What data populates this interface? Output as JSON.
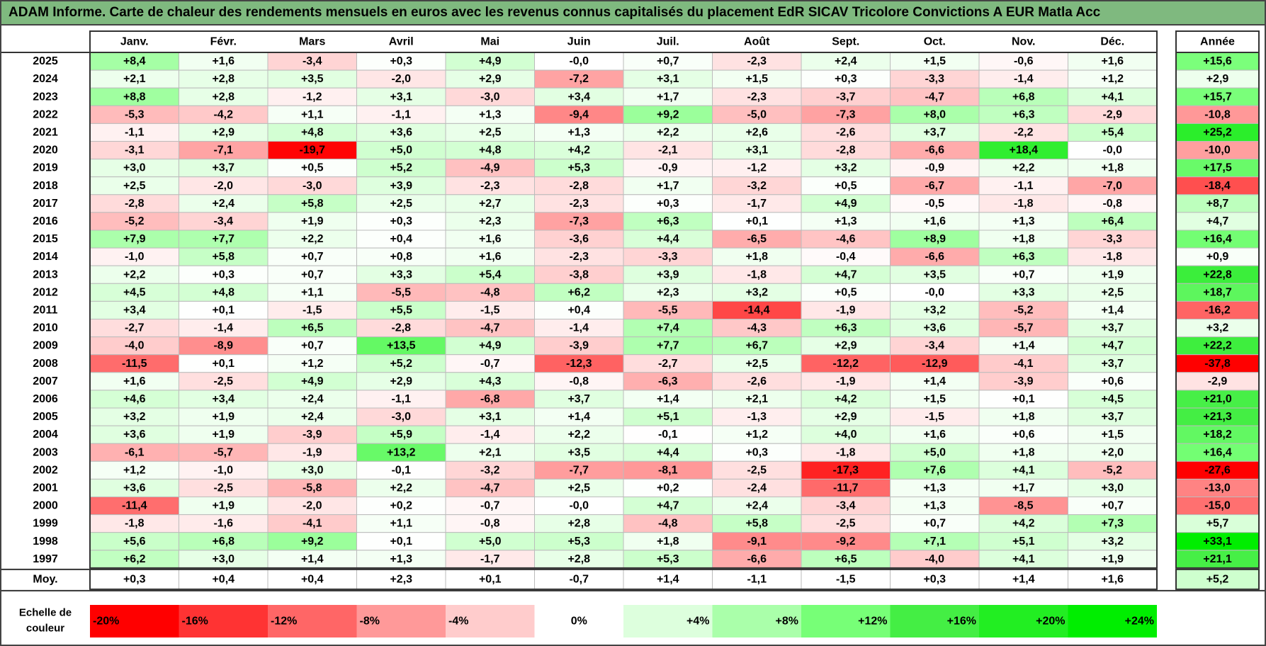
{
  "title": "ADAM Informe. Carte de chaleur des rendements mensuels en euros avec les revenus connus capitalisés du placement EdR SICAV Tricolore Convictions A EUR Matla Acc",
  "chart_data": {
    "type": "heatmap",
    "months": [
      "Janv.",
      "Févr.",
      "Mars",
      "Avril",
      "Mai",
      "Juin",
      "Juil.",
      "Août",
      "Sept.",
      "Oct.",
      "Nov.",
      "Déc."
    ],
    "year_header": "Année",
    "rows": [
      {
        "year": "2025",
        "months": [
          "+8,4",
          "+1,6",
          "-3,4",
          "+0,3",
          "+4,9",
          "-0,0",
          "+0,7",
          "-2,3",
          "+2,4",
          "+1,5",
          "-0,6",
          "+1,6"
        ],
        "annual": "+15,6"
      },
      {
        "year": "2024",
        "months": [
          "+2,1",
          "+2,8",
          "+3,5",
          "-2,0",
          "+2,9",
          "-7,2",
          "+3,1",
          "+1,5",
          "+0,3",
          "-3,3",
          "-1,4",
          "+1,2"
        ],
        "annual": "+2,9"
      },
      {
        "year": "2023",
        "months": [
          "+8,8",
          "+2,8",
          "-1,2",
          "+3,1",
          "-3,0",
          "+3,4",
          "+1,7",
          "-2,3",
          "-3,7",
          "-4,7",
          "+6,8",
          "+4,1"
        ],
        "annual": "+15,7"
      },
      {
        "year": "2022",
        "months": [
          "-5,3",
          "-4,2",
          "+1,1",
          "-1,1",
          "+1,3",
          "-9,4",
          "+9,2",
          "-5,0",
          "-7,3",
          "+8,0",
          "+6,3",
          "-2,9"
        ],
        "annual": "-10,8"
      },
      {
        "year": "2021",
        "months": [
          "-1,1",
          "+2,9",
          "+4,8",
          "+3,6",
          "+2,5",
          "+1,3",
          "+2,2",
          "+2,6",
          "-2,6",
          "+3,7",
          "-2,2",
          "+5,4"
        ],
        "annual": "+25,2"
      },
      {
        "year": "2020",
        "months": [
          "-3,1",
          "-7,1",
          "-19,7",
          "+5,0",
          "+4,8",
          "+4,2",
          "-2,1",
          "+3,1",
          "-2,8",
          "-6,6",
          "+18,4",
          "-0,0"
        ],
        "annual": "-10,0"
      },
      {
        "year": "2019",
        "months": [
          "+3,0",
          "+3,7",
          "+0,5",
          "+5,2",
          "-4,9",
          "+5,3",
          "-0,9",
          "-1,2",
          "+3,2",
          "-0,9",
          "+2,2",
          "+1,8"
        ],
        "annual": "+17,5"
      },
      {
        "year": "2018",
        "months": [
          "+2,5",
          "-2,0",
          "-3,0",
          "+3,9",
          "-2,3",
          "-2,8",
          "+1,7",
          "-3,2",
          "+0,5",
          "-6,7",
          "-1,1",
          "-7,0"
        ],
        "annual": "-18,4"
      },
      {
        "year": "2017",
        "months": [
          "-2,8",
          "+2,4",
          "+5,8",
          "+2,5",
          "+2,7",
          "-2,3",
          "+0,3",
          "-1,7",
          "+4,9",
          "-0,5",
          "-1,8",
          "-0,8"
        ],
        "annual": "+8,7"
      },
      {
        "year": "2016",
        "months": [
          "-5,2",
          "-3,4",
          "+1,9",
          "+0,3",
          "+2,3",
          "-7,3",
          "+6,3",
          "+0,1",
          "+1,3",
          "+1,6",
          "+1,3",
          "+6,4"
        ],
        "annual": "+4,7"
      },
      {
        "year": "2015",
        "months": [
          "+7,9",
          "+7,7",
          "+2,2",
          "+0,4",
          "+1,6",
          "-3,6",
          "+4,4",
          "-6,5",
          "-4,6",
          "+8,9",
          "+1,8",
          "-3,3"
        ],
        "annual": "+16,4"
      },
      {
        "year": "2014",
        "months": [
          "-1,0",
          "+5,8",
          "+0,7",
          "+0,8",
          "+1,6",
          "-2,3",
          "-3,3",
          "+1,8",
          "-0,4",
          "-6,6",
          "+6,3",
          "-1,8"
        ],
        "annual": "+0,9"
      },
      {
        "year": "2013",
        "months": [
          "+2,2",
          "+0,3",
          "+0,7",
          "+3,3",
          "+5,4",
          "-3,8",
          "+3,9",
          "-1,8",
          "+4,7",
          "+3,5",
          "+0,7",
          "+1,9"
        ],
        "annual": "+22,8"
      },
      {
        "year": "2012",
        "months": [
          "+4,5",
          "+4,8",
          "+1,1",
          "-5,5",
          "-4,8",
          "+6,2",
          "+2,3",
          "+3,2",
          "+0,5",
          "-0,0",
          "+3,3",
          "+2,5"
        ],
        "annual": "+18,7"
      },
      {
        "year": "2011",
        "months": [
          "+3,4",
          "+0,1",
          "-1,5",
          "+5,5",
          "-1,5",
          "+0,4",
          "-5,5",
          "-14,4",
          "-1,9",
          "+3,2",
          "-5,2",
          "+1,4"
        ],
        "annual": "-16,2"
      },
      {
        "year": "2010",
        "months": [
          "-2,7",
          "-1,4",
          "+6,5",
          "-2,8",
          "-4,7",
          "-1,4",
          "+7,4",
          "-4,3",
          "+6,3",
          "+3,6",
          "-5,7",
          "+3,7"
        ],
        "annual": "+3,2"
      },
      {
        "year": "2009",
        "months": [
          "-4,0",
          "-8,9",
          "+0,7",
          "+13,5",
          "+4,9",
          "-3,9",
          "+7,7",
          "+6,7",
          "+2,9",
          "-3,4",
          "+1,4",
          "+4,7"
        ],
        "annual": "+22,2"
      },
      {
        "year": "2008",
        "months": [
          "-11,5",
          "+0,1",
          "+1,2",
          "+5,2",
          "-0,7",
          "-12,3",
          "-2,7",
          "+2,5",
          "-12,2",
          "-12,9",
          "-4,1",
          "+3,7"
        ],
        "annual": "-37,8"
      },
      {
        "year": "2007",
        "months": [
          "+1,6",
          "-2,5",
          "+4,9",
          "+2,9",
          "+4,3",
          "-0,8",
          "-6,3",
          "-2,6",
          "-1,9",
          "+1,4",
          "-3,9",
          "+0,6"
        ],
        "annual": "-2,9"
      },
      {
        "year": "2006",
        "months": [
          "+4,6",
          "+3,4",
          "+2,4",
          "-1,1",
          "-6,8",
          "+3,7",
          "+1,4",
          "+2,1",
          "+4,2",
          "+1,5",
          "+0,1",
          "+4,5"
        ],
        "annual": "+21,0"
      },
      {
        "year": "2005",
        "months": [
          "+3,2",
          "+1,9",
          "+2,4",
          "-3,0",
          "+3,1",
          "+1,4",
          "+5,1",
          "-1,3",
          "+2,9",
          "-1,5",
          "+1,8",
          "+3,7"
        ],
        "annual": "+21,3"
      },
      {
        "year": "2004",
        "months": [
          "+3,6",
          "+1,9",
          "-3,9",
          "+5,9",
          "-1,4",
          "+2,2",
          "-0,1",
          "+1,2",
          "+4,0",
          "+1,6",
          "+0,6",
          "+1,5"
        ],
        "annual": "+18,2"
      },
      {
        "year": "2003",
        "months": [
          "-6,1",
          "-5,7",
          "-1,9",
          "+13,2",
          "+2,1",
          "+3,5",
          "+4,4",
          "+0,3",
          "-1,8",
          "+5,0",
          "+1,8",
          "+2,0"
        ],
        "annual": "+16,4"
      },
      {
        "year": "2002",
        "months": [
          "+1,2",
          "-1,0",
          "+3,0",
          "-0,1",
          "-3,2",
          "-7,7",
          "-8,1",
          "-2,5",
          "-17,3",
          "+7,6",
          "+4,1",
          "-5,2"
        ],
        "annual": "-27,6"
      },
      {
        "year": "2001",
        "months": [
          "+3,6",
          "-2,5",
          "-5,8",
          "+2,2",
          "-4,7",
          "+2,5",
          "+0,2",
          "-2,4",
          "-11,7",
          "+1,3",
          "+1,7",
          "+3,0"
        ],
        "annual": "-13,0"
      },
      {
        "year": "2000",
        "months": [
          "-11,4",
          "+1,9",
          "-2,0",
          "+0,2",
          "-0,7",
          "-0,0",
          "+4,7",
          "+2,4",
          "-3,4",
          "+1,3",
          "-8,5",
          "+0,7"
        ],
        "annual": "-15,0"
      },
      {
        "year": "1999",
        "months": [
          "-1,8",
          "-1,6",
          "-4,1",
          "+1,1",
          "-0,8",
          "+2,8",
          "-4,8",
          "+5,8",
          "-2,5",
          "+0,7",
          "+4,2",
          "+7,3"
        ],
        "annual": "+5,7"
      },
      {
        "year": "1998",
        "months": [
          "+5,6",
          "+6,8",
          "+9,2",
          "+0,1",
          "+5,0",
          "+5,3",
          "+1,8",
          "-9,1",
          "-9,2",
          "+7,1",
          "+5,1",
          "+3,2"
        ],
        "annual": "+33,1"
      },
      {
        "year": "1997",
        "months": [
          "+6,2",
          "+3,0",
          "+1,4",
          "+1,3",
          "-1,7",
          "+2,8",
          "+5,3",
          "-6,6",
          "+6,5",
          "-4,0",
          "+4,1",
          "+1,9"
        ],
        "annual": "+21,1"
      }
    ],
    "average": {
      "label": "Moy.",
      "months": [
        "+0,3",
        "+0,4",
        "+0,4",
        "+2,3",
        "+0,1",
        "-0,7",
        "+1,4",
        "-1,1",
        "-1,5",
        "+0,3",
        "+1,4",
        "+1,6"
      ],
      "annual": "+5,2"
    },
    "scale": {
      "label_line1": "Echelle de",
      "label_line2": "couleur",
      "stops": [
        {
          "label": "-20%",
          "value": -20,
          "color": "#ff0000"
        },
        {
          "label": "-16%",
          "value": -16,
          "color": "#ff3333"
        },
        {
          "label": "-12%",
          "value": -12,
          "color": "#ff6666"
        },
        {
          "label": "-8%",
          "value": -8,
          "color": "#ff9999"
        },
        {
          "label": "-4%",
          "value": -4,
          "color": "#ffcccc"
        },
        {
          "label": "0%",
          "value": 0,
          "color": "#ffffff"
        },
        {
          "label": "+4%",
          "value": 4,
          "color": "#ddffdd"
        },
        {
          "label": "+8%",
          "value": 8,
          "color": "#aaffaa"
        },
        {
          "label": "+12%",
          "value": 12,
          "color": "#77ff77"
        },
        {
          "label": "+16%",
          "value": 16,
          "color": "#44ee44"
        },
        {
          "label": "+20%",
          "value": 20,
          "color": "#22ee22"
        },
        {
          "label": "+24%",
          "value": 24,
          "color": "#00ee00"
        }
      ]
    },
    "colors": {
      "title_bar": "#7fb97f",
      "grid_line": "#bbbbbb",
      "border": "#333333"
    }
  }
}
